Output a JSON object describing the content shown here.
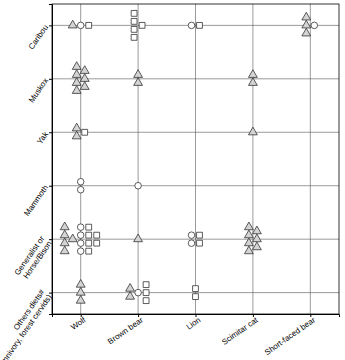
{
  "chart_data": {
    "type": "scatter",
    "categories": [
      "Wolf",
      "Brown bear",
      "Lion",
      "Scimitar cat",
      "Short-faced bear"
    ],
    "y_categories": [
      [
        "Caribou"
      ],
      [
        "Muskox"
      ],
      [
        "Yak"
      ],
      [
        "Mammoth"
      ],
      [
        "Generalist or",
        "Horse/Bison"
      ],
      [
        "Others diets#",
        "(omnivory, forest cervids)"
      ]
    ],
    "grid": true,
    "series": [
      {
        "marker": "triangle",
        "color": "#d4d4d4",
        "values": [
          [
            1,
            0,
            0,
            0,
            3
          ],
          [
            7,
            2,
            0,
            2,
            0
          ],
          [
            2,
            0,
            0,
            1,
            0
          ],
          [
            0,
            0,
            0,
            0,
            0
          ],
          [
            5,
            1,
            0,
            7,
            0
          ],
          [
            3,
            2,
            0,
            0,
            0
          ]
        ]
      },
      {
        "marker": "circle",
        "color": "#ffffff",
        "values": [
          [
            1,
            0,
            1,
            0,
            1
          ],
          [
            0,
            0,
            0,
            0,
            0
          ],
          [
            0,
            0,
            0,
            0,
            0
          ],
          [
            2,
            1,
            0,
            0,
            0
          ],
          [
            4,
            0,
            2,
            0,
            0
          ],
          [
            0,
            1,
            0,
            0,
            0
          ]
        ]
      },
      {
        "marker": "square",
        "color": "#ffffff",
        "values": [
          [
            1,
            5,
            1,
            0,
            0
          ],
          [
            0,
            0,
            0,
            0,
            0
          ],
          [
            1,
            0,
            0,
            0,
            0
          ],
          [
            0,
            0,
            0,
            0,
            0
          ],
          [
            6,
            0,
            2,
            0,
            0
          ],
          [
            0,
            3,
            2,
            0,
            0
          ]
        ]
      }
    ]
  }
}
